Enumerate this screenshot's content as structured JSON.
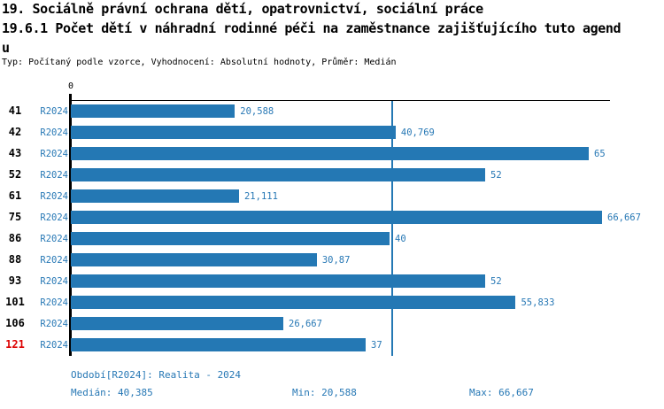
{
  "header": {
    "title_line1": "19. Sociálně právní ochrana dětí, opatrovnictví, sociální práce",
    "title_line2": "19.6.1 Počet dětí v náhradní rodinné péči na zaměstnance zajišťujícího tuto agend",
    "title_line3": "u",
    "meta": "Typ: Počítaný podle vzorce, Vyhodnocení: Absolutní hodnoty, Průměr: Medián"
  },
  "chart_data": {
    "type": "bar",
    "orientation": "horizontal",
    "title": "19.6.1 Počet dětí v náhradní rodinné péči na zaměstnance zajišťujícího tuto agendu",
    "axis_zero_label": "0",
    "x_range": [
      0,
      67.5
    ],
    "grid": "off",
    "median_value": 40.385,
    "categories": [
      "41",
      "42",
      "43",
      "52",
      "61",
      "75",
      "86",
      "88",
      "93",
      "101",
      "106",
      "121"
    ],
    "rows": [
      {
        "id": "41",
        "period": "R2024",
        "value": 20.588,
        "value_label": "20,588",
        "highlight": false
      },
      {
        "id": "42",
        "period": "R2024",
        "value": 40.769,
        "value_label": "40,769",
        "highlight": false
      },
      {
        "id": "43",
        "period": "R2024",
        "value": 65,
        "value_label": "65",
        "highlight": false
      },
      {
        "id": "52",
        "period": "R2024",
        "value": 52,
        "value_label": "52",
        "highlight": false
      },
      {
        "id": "61",
        "period": "R2024",
        "value": 21.111,
        "value_label": "21,111",
        "highlight": false
      },
      {
        "id": "75",
        "period": "R2024",
        "value": 66.667,
        "value_label": "66,667",
        "highlight": false
      },
      {
        "id": "86",
        "period": "R2024",
        "value": 40,
        "value_label": "40",
        "highlight": false
      },
      {
        "id": "88",
        "period": "R2024",
        "value": 30.87,
        "value_label": "30,87",
        "highlight": false
      },
      {
        "id": "93",
        "period": "R2024",
        "value": 52,
        "value_label": "52",
        "highlight": false
      },
      {
        "id": "101",
        "period": "R2024",
        "value": 55.833,
        "value_label": "55,833",
        "highlight": false
      },
      {
        "id": "106",
        "period": "R2024",
        "value": 26.667,
        "value_label": "26,667",
        "highlight": false
      },
      {
        "id": "121",
        "period": "R2024",
        "value": 37,
        "value_label": "37",
        "highlight": true
      }
    ]
  },
  "footer": {
    "period_info": "Období[R2024]: Realita - 2024",
    "median": "Medián: 40,385",
    "min": "Min: 20,588",
    "max": "Max: 66,667"
  },
  "colors": {
    "bar": "#2478b4",
    "text_blue": "#2778b5",
    "highlight_red": "#dd0000",
    "axis_black": "#000000"
  }
}
